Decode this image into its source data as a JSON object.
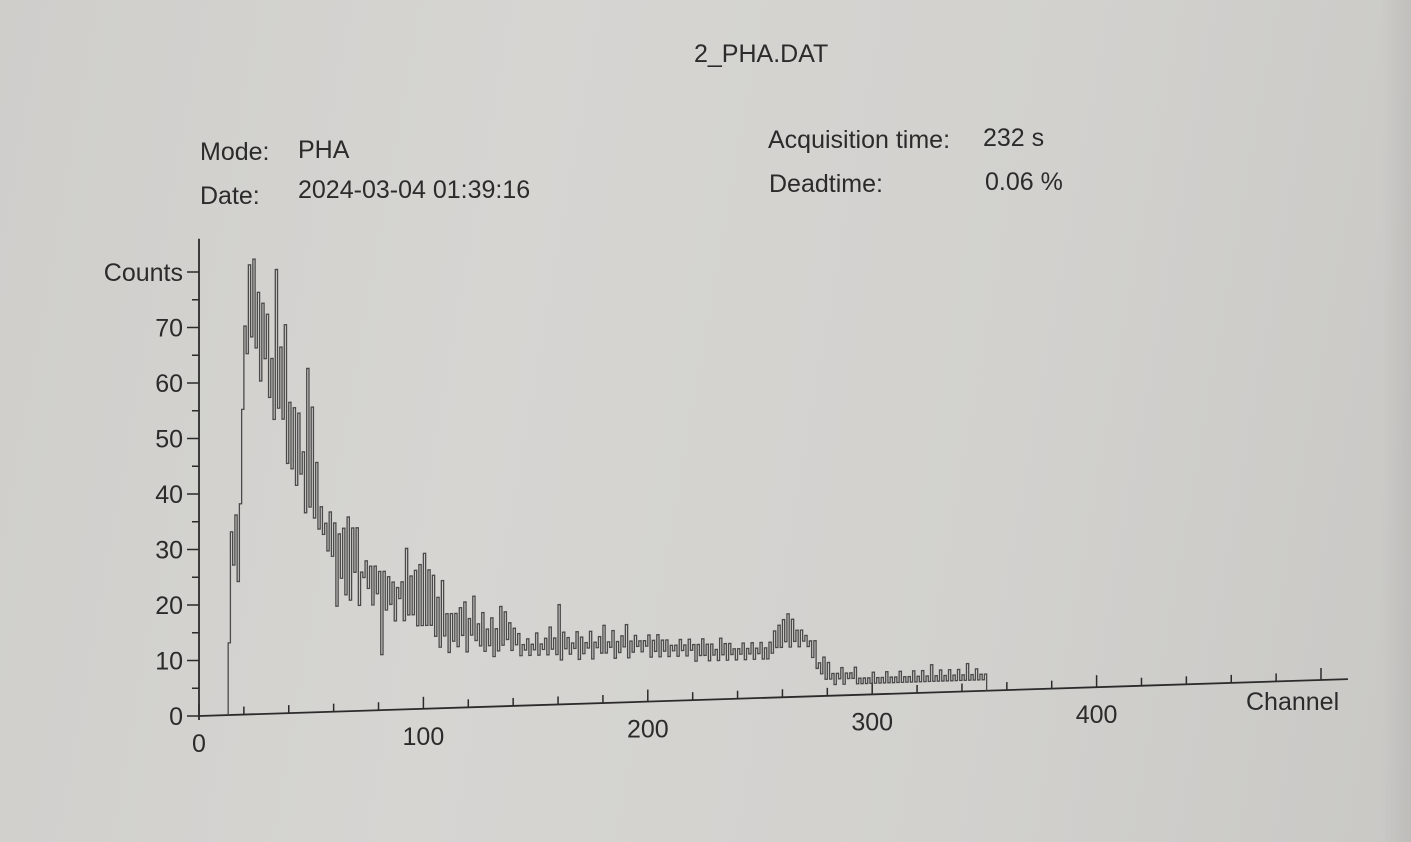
{
  "header": {
    "file_title": "2_PHA.DAT",
    "mode_label": "Mode:",
    "mode_value": "PHA",
    "date_label": "Date:",
    "date_value": "2024-03-04 01:39:16",
    "acq_label": "Acquisition time:",
    "acq_value": "232 s",
    "dead_label": "Deadtime:",
    "dead_value": "0.06 %"
  },
  "colors": {
    "trace": "#4a4a4a",
    "axis": "#2b2b2b"
  },
  "chart_data": {
    "type": "line",
    "title": "2_PHA.DAT",
    "xlabel": "Channel",
    "ylabel": "Counts",
    "xlim": [
      0,
      500
    ],
    "ylim": [
      0,
      80
    ],
    "xticks": [
      0,
      100,
      200,
      300,
      400
    ],
    "yticks": [
      0,
      10,
      20,
      30,
      40,
      50,
      60,
      70
    ],
    "grid": false,
    "series": [
      {
        "name": "PHA spectrum",
        "x_start": 13,
        "values": [
          13,
          33,
          27,
          36,
          24,
          38,
          55,
          70,
          65,
          81,
          68,
          82,
          66,
          76,
          60,
          74,
          64,
          72,
          57,
          64,
          53,
          80,
          55,
          66,
          53,
          70,
          45,
          56,
          44,
          55,
          41,
          54,
          43,
          47,
          36,
          62,
          37,
          55,
          35,
          45,
          33,
          37,
          32,
          34,
          29,
          36,
          28,
          34,
          19,
          32,
          24,
          33,
          21,
          35,
          20,
          33,
          25,
          33,
          19,
          25,
          24,
          27,
          22,
          26,
          19,
          26,
          21,
          25,
          10,
          25,
          18,
          24,
          19,
          23,
          16,
          22,
          20,
          23,
          16,
          29,
          17,
          24,
          17,
          25,
          15,
          26,
          15,
          28,
          15,
          25,
          15,
          24,
          13,
          20,
          11,
          23,
          13,
          17,
          10,
          17,
          12,
          17,
          11,
          18,
          13,
          19,
          10,
          16,
          13,
          20,
          12,
          15,
          11,
          17,
          10,
          14,
          11,
          16,
          9,
          14,
          10,
          18,
          11,
          17,
          12,
          15,
          10,
          14,
          11,
          13,
          9,
          11,
          10,
          12,
          9,
          11,
          10,
          13,
          9,
          11,
          10,
          12,
          9,
          14,
          10,
          12,
          9,
          18,
          8,
          13,
          10,
          12,
          9,
          11,
          10,
          13,
          8,
          12,
          9,
          11,
          10,
          13,
          8,
          11,
          10,
          12,
          9,
          14,
          9,
          11,
          10,
          13,
          8,
          11,
          9,
          12,
          10,
          14,
          8,
          11,
          9,
          12,
          10,
          11,
          9,
          11,
          10,
          12,
          8,
          11,
          9,
          12,
          8,
          11,
          9,
          11,
          8,
          10,
          9,
          10,
          8,
          11,
          9,
          10,
          8,
          11,
          9,
          10,
          7,
          10,
          8,
          11,
          8,
          10,
          7,
          10,
          8,
          9,
          7,
          11,
          8,
          10,
          7,
          10,
          8,
          9,
          7,
          9,
          8,
          10,
          7,
          9,
          8,
          10,
          7,
          9,
          8,
          10,
          7,
          9,
          7,
          10,
          8,
          12,
          9,
          13,
          9,
          14,
          10,
          15,
          9,
          14,
          10,
          12,
          9,
          12,
          10,
          11,
          9,
          10,
          7,
          10,
          5,
          6,
          4,
          7,
          3,
          6,
          3,
          4,
          2,
          4,
          3,
          5,
          2,
          4,
          3,
          4,
          3,
          5,
          2,
          3,
          2,
          3,
          2,
          3,
          2,
          4,
          2,
          3,
          2,
          3,
          2,
          4,
          2,
          3,
          2,
          3,
          2,
          4,
          2,
          3,
          2,
          3,
          2,
          4,
          2,
          3,
          2,
          4,
          2,
          3,
          2,
          5,
          2,
          3,
          2,
          4,
          2,
          3,
          2,
          4,
          2,
          3,
          2,
          4,
          2,
          3,
          2,
          5,
          2,
          3,
          2,
          4,
          2,
          3,
          2,
          3
        ]
      }
    ]
  }
}
